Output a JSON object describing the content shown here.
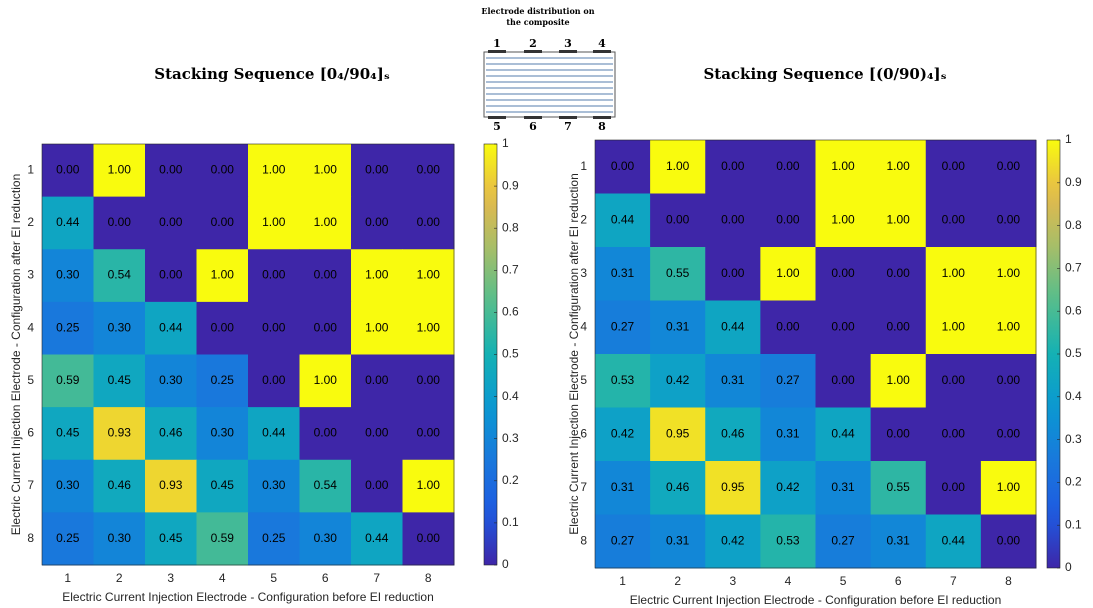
{
  "chart_data": [
    {
      "type": "heatmap",
      "title": "Stacking Sequence [0₄/90₄]ₛ",
      "x_label": "Electric Current Injection Electrode - Configuration before EI reduction",
      "y_label": "Electric Current Injection Electrode - Configuration after EI reduction",
      "x_categories": [
        "1",
        "2",
        "3",
        "4",
        "5",
        "6",
        "7",
        "8"
      ],
      "y_categories": [
        "1",
        "2",
        "3",
        "4",
        "5",
        "6",
        "7",
        "8"
      ],
      "values": [
        [
          0,
          1,
          0,
          0,
          1,
          1,
          0,
          0
        ],
        [
          0.44,
          0,
          0,
          0,
          1,
          1,
          0,
          0
        ],
        [
          0.3,
          0.54,
          0,
          1,
          0,
          0,
          1,
          1
        ],
        [
          0.25,
          0.3,
          0.44,
          0,
          0,
          0,
          1,
          1
        ],
        [
          0.59,
          0.45,
          0.3,
          0.25,
          0,
          1,
          0,
          0
        ],
        [
          0.45,
          0.93,
          0.46,
          0.3,
          0.44,
          0,
          0,
          0
        ],
        [
          0.3,
          0.46,
          0.93,
          0.45,
          0.3,
          0.54,
          0,
          1
        ],
        [
          0.25,
          0.3,
          0.45,
          0.59,
          0.25,
          0.3,
          0.44,
          0
        ]
      ],
      "value_labels": [
        [
          "0.00",
          "1.00",
          "0.00",
          "0.00",
          "1.00",
          "1.00",
          "0.00",
          "0.00"
        ],
        [
          "0.44",
          "0.00",
          "0.00",
          "0.00",
          "1.00",
          "1.00",
          "0.00",
          "0.00"
        ],
        [
          "0.30",
          "0.54",
          "0.00",
          "1.00",
          "0.00",
          "0.00",
          "1.00",
          "1.00"
        ],
        [
          "0.25",
          "0.30",
          "0.44",
          "0.00",
          "0.00",
          "0.00",
          "1.00",
          "1.00"
        ],
        [
          "0.59",
          "0.45",
          "0.30",
          "0.25",
          "0.00",
          "1.00",
          "0.00",
          "0.00"
        ],
        [
          "0.45",
          "0.93",
          "0.46",
          "0.30",
          "0.44",
          "0.00",
          "0.00",
          "0.00"
        ],
        [
          "0.30",
          "0.46",
          "0.93",
          "0.45",
          "0.30",
          "0.54",
          "0.00",
          "1.00"
        ],
        [
          "0.25",
          "0.30",
          "0.45",
          "0.59",
          "0.25",
          "0.30",
          "0.44",
          "0.00"
        ]
      ],
      "colormap": "parula",
      "clim": [
        0,
        1
      ],
      "cticks": [
        0,
        0.1,
        0.2,
        0.3,
        0.4,
        0.5,
        0.6,
        0.7,
        0.8,
        0.9,
        1
      ]
    },
    {
      "type": "heatmap",
      "title": "Stacking Sequence [(0/90)₄]ₛ",
      "x_label": "Electric Current Injection Electrode - Configuration before EI reduction",
      "y_label": "Electric Current Injection Electrode - Configuration after EI reduction",
      "x_categories": [
        "1",
        "2",
        "3",
        "4",
        "5",
        "6",
        "7",
        "8"
      ],
      "y_categories": [
        "1",
        "2",
        "3",
        "4",
        "5",
        "6",
        "7",
        "8"
      ],
      "values": [
        [
          0,
          1,
          0,
          0,
          1,
          1,
          0,
          0
        ],
        [
          0.44,
          0,
          0,
          0,
          1,
          1,
          0,
          0
        ],
        [
          0.31,
          0.55,
          0,
          1,
          0,
          0,
          1,
          1
        ],
        [
          0.27,
          0.31,
          0.44,
          0,
          0,
          0,
          1,
          1
        ],
        [
          0.53,
          0.42,
          0.31,
          0.27,
          0,
          1,
          0,
          0
        ],
        [
          0.42,
          0.95,
          0.46,
          0.31,
          0.44,
          0,
          0,
          0
        ],
        [
          0.31,
          0.46,
          0.95,
          0.42,
          0.31,
          0.55,
          0,
          1
        ],
        [
          0.27,
          0.31,
          0.42,
          0.53,
          0.27,
          0.31,
          0.44,
          0
        ]
      ],
      "value_labels": [
        [
          "0.00",
          "1.00",
          "0.00",
          "0.00",
          "1.00",
          "1.00",
          "0.00",
          "0.00"
        ],
        [
          "0.44",
          "0.00",
          "0.00",
          "0.00",
          "1.00",
          "1.00",
          "0.00",
          "0.00"
        ],
        [
          "0.31",
          "0.55",
          "0.00",
          "1.00",
          "0.00",
          "0.00",
          "1.00",
          "1.00"
        ],
        [
          "0.27",
          "0.31",
          "0.44",
          "0.00",
          "0.00",
          "0.00",
          "1.00",
          "1.00"
        ],
        [
          "0.53",
          "0.42",
          "0.31",
          "0.27",
          "0.00",
          "1.00",
          "0.00",
          "0.00"
        ],
        [
          "0.42",
          "0.95",
          "0.46",
          "0.31",
          "0.44",
          "0.00",
          "0.00",
          "0.00"
        ],
        [
          "0.31",
          "0.46",
          "0.95",
          "0.42",
          "0.31",
          "0.55",
          "0.00",
          "1.00"
        ],
        [
          "0.27",
          "0.31",
          "0.42",
          "0.53",
          "0.27",
          "0.31",
          "0.44",
          "0.00"
        ]
      ],
      "colormap": "parula",
      "clim": [
        0,
        1
      ],
      "cticks": [
        0,
        0.1,
        0.2,
        0.3,
        0.4,
        0.5,
        0.6,
        0.7,
        0.8,
        0.9,
        1
      ]
    }
  ],
  "diagram": {
    "title": "Electrode distribution on the composite",
    "top_labels": [
      "1",
      "2",
      "3",
      "4"
    ],
    "bottom_labels": [
      "5",
      "6",
      "7",
      "8"
    ]
  }
}
